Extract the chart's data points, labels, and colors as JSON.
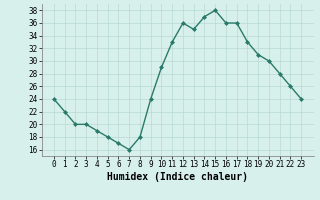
{
  "x": [
    0,
    1,
    2,
    3,
    4,
    5,
    6,
    7,
    8,
    9,
    10,
    11,
    12,
    13,
    14,
    15,
    16,
    17,
    18,
    19,
    20,
    21,
    22,
    23
  ],
  "y": [
    24,
    22,
    20,
    20,
    19,
    18,
    17,
    16,
    18,
    24,
    29,
    33,
    36,
    35,
    37,
    38,
    36,
    36,
    33,
    31,
    30,
    28,
    26,
    24
  ],
  "line_color": "#2a7a6a",
  "marker": "D",
  "marker_size": 2.0,
  "line_width": 1.0,
  "xlabel": "Humidex (Indice chaleur)",
  "ylim": [
    15,
    39
  ],
  "yticks": [
    16,
    18,
    20,
    22,
    24,
    26,
    28,
    30,
    32,
    34,
    36,
    38
  ],
  "xticks": [
    0,
    1,
    2,
    3,
    4,
    5,
    6,
    7,
    8,
    9,
    10,
    11,
    12,
    13,
    14,
    15,
    16,
    17,
    18,
    19,
    20,
    21,
    22,
    23
  ],
  "bg_color": "#d8f0ec",
  "grid_color": "#b8d8d4",
  "xlabel_fontsize": 7,
  "tick_fontsize": 5.5,
  "title": ""
}
